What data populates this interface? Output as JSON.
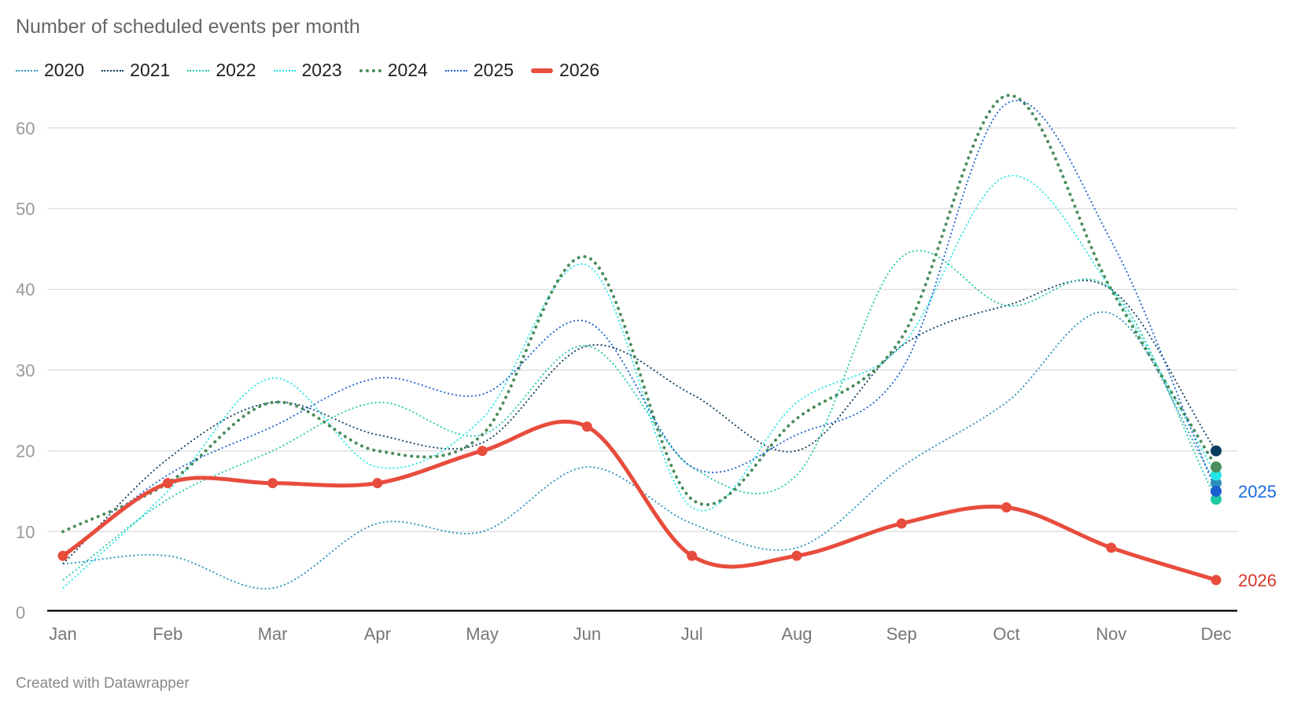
{
  "header": {
    "title": "Number of scheduled events per month"
  },
  "footer": {
    "credit": "Created with Datawrapper"
  },
  "chart_data": {
    "type": "line",
    "title": "Number of scheduled events per month",
    "xlabel": "",
    "ylabel": "",
    "x": [
      "Jan",
      "Feb",
      "Mar",
      "Apr",
      "May",
      "Jun",
      "Jul",
      "Aug",
      "Sep",
      "Oct",
      "Nov",
      "Dec"
    ],
    "ylim": [
      0,
      65
    ],
    "yticks": [
      0,
      10,
      20,
      30,
      40,
      50,
      60
    ],
    "grid": true,
    "legend_position": "top-left",
    "curve": "smooth",
    "series": [
      {
        "name": "2020",
        "color": "#2a8fbd",
        "style": "dotted",
        "values": [
          6,
          7,
          3,
          11,
          10,
          18,
          11,
          8,
          18,
          26,
          37,
          16
        ]
      },
      {
        "name": "2021",
        "color": "#0b3c5d",
        "style": "dotted",
        "values": [
          6,
          19,
          26,
          22,
          21,
          33,
          27,
          20,
          33,
          38,
          40,
          20
        ]
      },
      {
        "name": "2022",
        "color": "#1ec9a6",
        "style": "dotted",
        "values": [
          4,
          14,
          20,
          26,
          22,
          33,
          18,
          17,
          44,
          38,
          40,
          14
        ]
      },
      {
        "name": "2023",
        "color": "#22e5e5",
        "style": "dotted",
        "values": [
          3,
          15,
          29,
          18,
          24,
          43,
          13,
          26,
          33,
          54,
          40,
          17
        ]
      },
      {
        "name": "2024",
        "color": "#4a8c5c",
        "style": "dotted-bold",
        "values": [
          10,
          16,
          26,
          20,
          22,
          44,
          14,
          24,
          34,
          64,
          40,
          18
        ]
      },
      {
        "name": "2025",
        "color": "#1a5fd0",
        "style": "dotted",
        "values": [
          7,
          17,
          23,
          29,
          27,
          36,
          18,
          22,
          30,
          63,
          46,
          15
        ]
      },
      {
        "name": "2026",
        "color": "#e84c3d",
        "style": "solid-bold",
        "values": [
          7,
          16,
          16,
          16,
          20,
          23,
          7,
          7,
          11,
          13,
          8,
          4
        ]
      }
    ],
    "end_labels": [
      {
        "series": "2025",
        "text": "2025",
        "color": "#1a6ce0"
      },
      {
        "series": "2026",
        "text": "2026",
        "color": "#d9362b"
      }
    ]
  }
}
